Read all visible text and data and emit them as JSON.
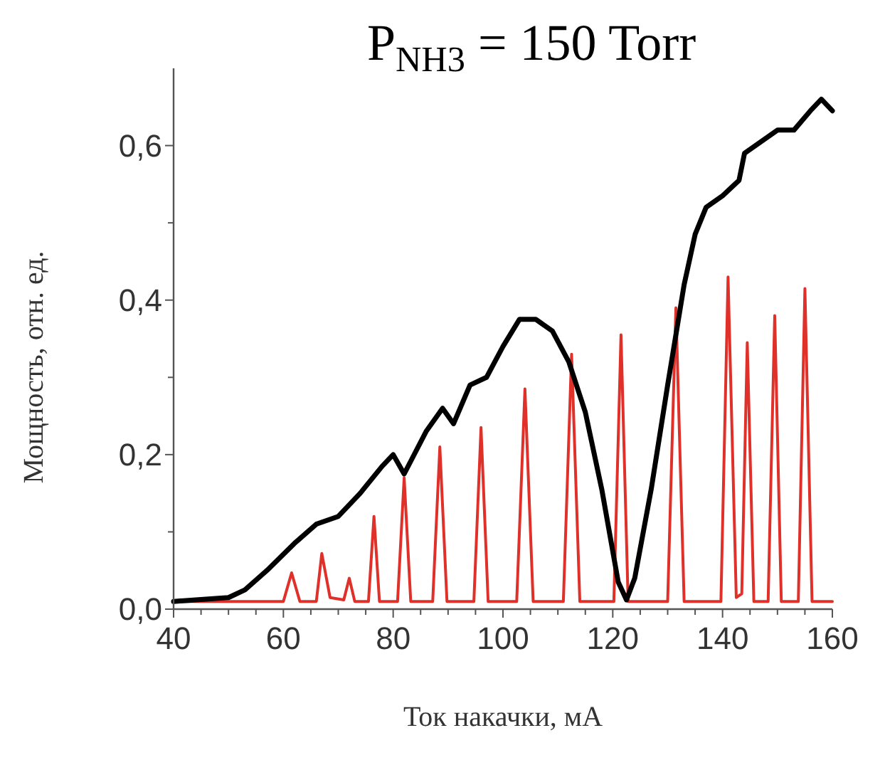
{
  "chart_data": {
    "type": "line",
    "title": "P$_{NH3}$ = 150 Torr",
    "xlabel": "Ток накачки, мА",
    "ylabel": "Мощность, отн. ед.",
    "xlim": [
      40,
      160
    ],
    "ylim": [
      0,
      0.7
    ],
    "xticks": [
      40,
      {
        "value": 45,
        "label": null
      },
      {
        "value": 50,
        "label": null
      },
      {
        "value": 55,
        "label": null
      },
      60,
      {
        "value": 65,
        "label": null
      },
      {
        "value": 70,
        "label": null
      },
      {
        "value": 75,
        "label": null
      },
      80,
      {
        "value": 85,
        "label": null
      },
      {
        "value": 90,
        "label": null
      },
      {
        "value": 95,
        "label": null
      },
      100,
      {
        "value": 105,
        "label": null
      },
      {
        "value": 110,
        "label": null
      },
      {
        "value": 115,
        "label": null
      },
      120,
      {
        "value": 125,
        "label": null
      },
      {
        "value": 130,
        "label": null
      },
      {
        "value": 135,
        "label": null
      },
      140,
      {
        "value": 145,
        "label": null
      },
      {
        "value": 150,
        "label": null
      },
      {
        "value": 155,
        "label": null
      },
      160
    ],
    "yticks": [
      {
        "value": 0,
        "label": "0,0"
      },
      {
        "value": 0.1,
        "label": null
      },
      {
        "value": 0.2,
        "label": "0,2"
      },
      {
        "value": 0.3,
        "label": null
      },
      {
        "value": 0.4,
        "label": "0,4"
      },
      {
        "value": 0.5,
        "label": null
      },
      {
        "value": 0.6,
        "label": "0,6"
      }
    ],
    "grid": false,
    "marker": "none",
    "line_style": "solid",
    "series": [
      {
        "color": "#e0302a",
        "x": [
          40,
          60,
          61.5,
          63,
          66,
          67,
          68.5,
          71,
          72,
          73,
          75.5,
          76.5,
          77.5,
          80.8,
          82,
          83.2,
          87.2,
          88.5,
          89.8,
          94.7,
          96,
          97.3,
          102.5,
          104,
          105.5,
          111,
          112.5,
          114,
          120.2,
          121.5,
          122.8,
          130,
          131.5,
          133,
          139.7,
          141,
          142.5,
          143.5,
          144.5,
          145.7,
          148.3,
          149.5,
          150.7,
          153.8,
          155,
          156.3,
          160
        ],
        "values": [
          0.01,
          0.01,
          0.047,
          0.01,
          0.01,
          0.072,
          0.015,
          0.012,
          0.04,
          0.01,
          0.01,
          0.12,
          0.01,
          0.01,
          0.17,
          0.01,
          0.01,
          0.21,
          0.01,
          0.01,
          0.235,
          0.01,
          0.01,
          0.285,
          0.01,
          0.01,
          0.33,
          0.01,
          0.01,
          0.355,
          0.01,
          0.01,
          0.39,
          0.01,
          0.01,
          0.43,
          0.015,
          0.02,
          0.345,
          0.01,
          0.01,
          0.38,
          0.01,
          0.01,
          0.415,
          0.01,
          0.01
        ]
      },
      {
        "color": "#000000",
        "x": [
          40,
          50,
          53,
          57,
          62,
          66,
          70,
          74,
          78,
          80,
          82,
          86,
          89,
          91,
          94,
          97,
          100,
          103,
          106,
          109,
          112,
          115,
          118,
          121,
          122.5,
          124,
          127,
          130,
          133,
          135,
          137,
          140,
          143,
          144,
          147,
          150,
          153,
          156,
          158,
          160
        ],
        "values": [
          0.01,
          0.015,
          0.025,
          0.05,
          0.085,
          0.11,
          0.12,
          0.15,
          0.185,
          0.2,
          0.175,
          0.23,
          0.26,
          0.24,
          0.29,
          0.3,
          0.34,
          0.375,
          0.375,
          0.36,
          0.32,
          0.255,
          0.155,
          0.035,
          0.012,
          0.04,
          0.155,
          0.29,
          0.42,
          0.485,
          0.52,
          0.535,
          0.555,
          0.59,
          0.605,
          0.62,
          0.62,
          0.645,
          0.66,
          0.645
        ]
      }
    ]
  }
}
